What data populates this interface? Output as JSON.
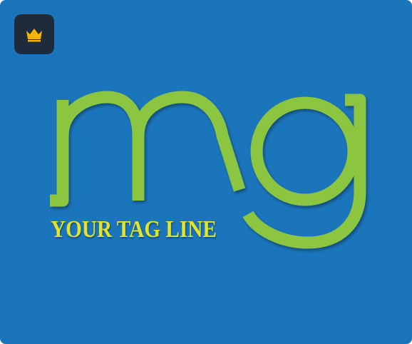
{
  "logo": {
    "monogram": "mg",
    "tagline": "YOUR TAG LINE"
  },
  "badge": {
    "icon": "crown-icon"
  },
  "colors": {
    "background": "#1b75bb",
    "monogram": "#8cc63f",
    "tagline": "#e3e32a",
    "badge_background": "#1e2b3c",
    "badge_icon": "#f7b500"
  }
}
